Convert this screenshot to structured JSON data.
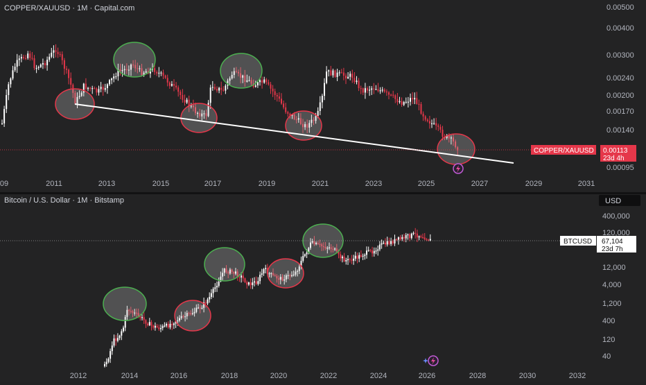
{
  "top": {
    "title": "COPPER/XAUUSD · 1M · Capital.com",
    "y_ticks": [
      "0.00500",
      "0.00400",
      "0.00300",
      "0.00240",
      "0.00200",
      "0.00170",
      "0.00140",
      "0.00095"
    ],
    "x_ticks": [
      "09",
      "2011",
      "2013",
      "2015",
      "2017",
      "2019",
      "2021",
      "2023",
      "2025",
      "2027",
      "2029",
      "2031"
    ],
    "price_tag": {
      "symbol": "COPPER/XAUUSD",
      "value": "0.00113",
      "countdown": "23d 4h"
    },
    "colors": {
      "up": "#ffffff",
      "down": "#e5374a",
      "green_ring": "#4caf50",
      "red_ring": "#e5374a",
      "trendline": "#ffffff"
    }
  },
  "bottom": {
    "title": "Bitcoin / U.S. Dollar · 1M · Bitstamp",
    "currency_button": "USD",
    "y_ticks": [
      "400,000",
      "120,000",
      "12,000",
      "4,000",
      "1,200",
      "400",
      "120",
      "40"
    ],
    "x_ticks": [
      "2012",
      "2014",
      "2016",
      "2018",
      "2020",
      "2022",
      "2024",
      "2026",
      "2028",
      "2030",
      "2032"
    ],
    "price_tag": {
      "symbol": "BTCUSD",
      "value": "67,104",
      "countdown": "23d 7h"
    }
  },
  "chart_data": [
    {
      "type": "candlestick",
      "title": "COPPER/XAUUSD · 1M · Capital.com",
      "y_scale": "log",
      "ylim": [
        0.0009,
        0.0052
      ],
      "x_ticks": [
        "2011",
        "2013",
        "2015",
        "2017",
        "2019",
        "2021",
        "2023",
        "2025",
        "2027",
        "2029",
        "2031"
      ],
      "last_price": 0.00113,
      "approx_monthly_close_path": [
        {
          "x": "2009",
          "y": 0.0016
        },
        {
          "x": "2010",
          "y": 0.0031
        },
        {
          "x": "2011-03",
          "y": 0.0033
        },
        {
          "x": "2011-10",
          "y": 0.0018
        },
        {
          "x": "2013-06",
          "y": 0.0029
        },
        {
          "x": "2015",
          "y": 0.0022
        },
        {
          "x": "2016-01",
          "y": 0.0016
        },
        {
          "x": "2017",
          "y": 0.0023
        },
        {
          "x": "2018-03",
          "y": 0.0026
        },
        {
          "x": "2019",
          "y": 0.002
        },
        {
          "x": "2020-03",
          "y": 0.0014
        },
        {
          "x": "2021-05",
          "y": 0.0026
        },
        {
          "x": "2023",
          "y": 0.0022
        },
        {
          "x": "2024-06",
          "y": 0.0019
        },
        {
          "x": "2025-10",
          "y": 0.00115
        }
      ],
      "trendline": [
        {
          "x": "2011-10",
          "y": 0.00178
        },
        {
          "x": "2028",
          "y": 0.00097
        }
      ]
    },
    {
      "type": "candlestick",
      "title": "Bitcoin / U.S. Dollar · 1M · Bitstamp",
      "y_scale": "log",
      "ylim": [
        25,
        500000
      ],
      "x_ticks": [
        "2012",
        "2014",
        "2016",
        "2018",
        "2020",
        "2022",
        "2024",
        "2026",
        "2028",
        "2030",
        "2032"
      ],
      "last_price": 67104,
      "approx_monthly_close_path": [
        {
          "x": "2013-01",
          "y": 20
        },
        {
          "x": "2013-04",
          "y": 130
        },
        {
          "x": "2013-12",
          "y": 900
        },
        {
          "x": "2014",
          "y": 500
        },
        {
          "x": "2015",
          "y": 250
        },
        {
          "x": "2016-06",
          "y": 600
        },
        {
          "x": "2017-12",
          "y": 15000
        },
        {
          "x": "2018-12",
          "y": 3500
        },
        {
          "x": "2019-06",
          "y": 9000
        },
        {
          "x": "2020-03",
          "y": 6500
        },
        {
          "x": "2021-04",
          "y": 58000
        },
        {
          "x": "2021-11",
          "y": 60000
        },
        {
          "x": "2022-11",
          "y": 16000
        },
        {
          "x": "2024-03",
          "y": 70000
        },
        {
          "x": "2025-01",
          "y": 100000
        },
        {
          "x": "2025-09",
          "y": 110000
        },
        {
          "x": "2026-01",
          "y": 67104
        }
      ]
    }
  ]
}
